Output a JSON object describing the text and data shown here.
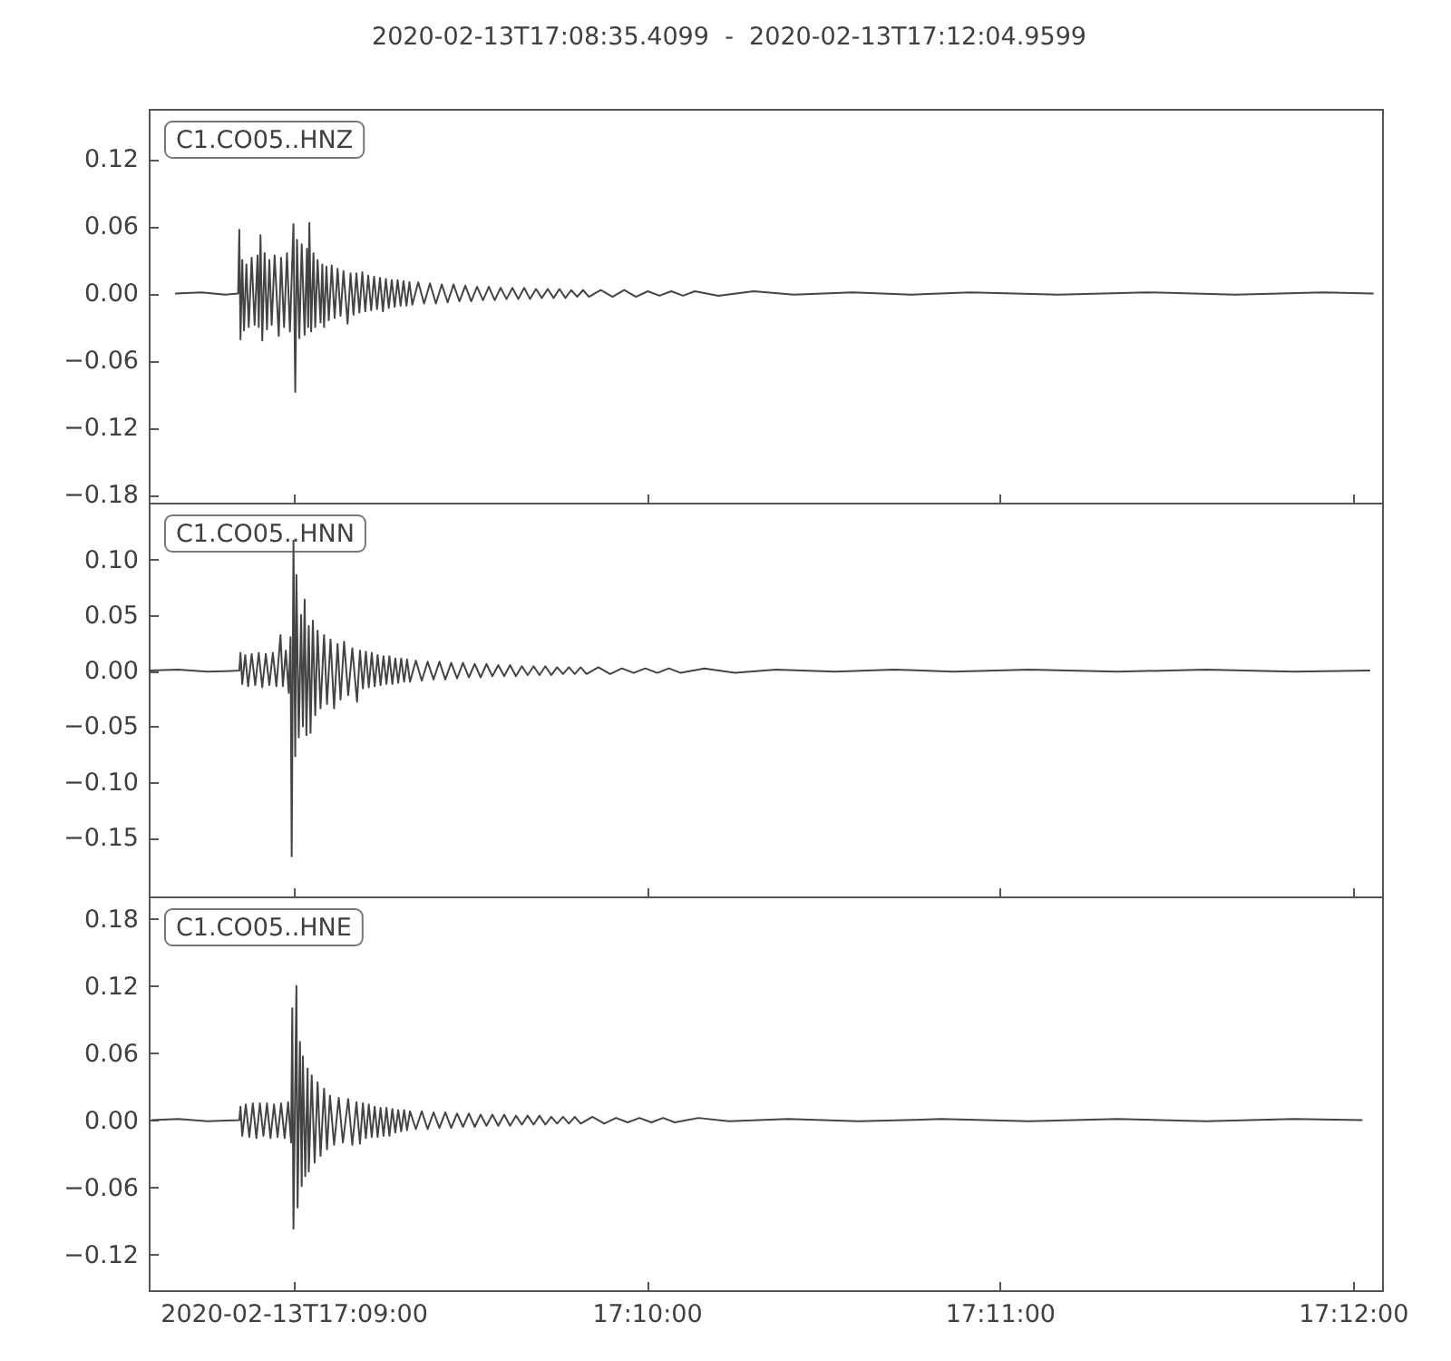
{
  "chart_data": [
    {
      "type": "line",
      "title": "2020-02-13T17:08:35.4099  -  2020-02-13T17:12:04.9599",
      "annotations": [
        "C1.CO05..HNZ"
      ],
      "tick_labels": "y",
      "xlim": [
        "2020-02-13T17:08:35.4099",
        "2020-02-13T17:12:04.9599"
      ],
      "xticks": [
        "2020-02-13T17:09:00",
        "2020-02-13T17:10:00",
        "2020-02-13T17:11:00",
        "2020-02-13T17:12:00"
      ],
      "ylim": [
        -0.187,
        0.165
      ],
      "yticks": [
        {
          "value": -0.18,
          "label": "−0.18"
        },
        {
          "value": -0.12,
          "label": "−0.12"
        },
        {
          "value": -0.06,
          "label": "−0.06"
        },
        {
          "value": 0,
          "label": "0.00"
        },
        {
          "value": 0.06,
          "label": "0.06"
        },
        {
          "value": 0.12,
          "label": "0.12"
        }
      ],
      "x": [
        "2020-02-13T17:08:40.0",
        "2020-02-13T17:08:44.4",
        "2020-02-13T17:08:48.4",
        "2020-02-13T17:08:50.6",
        "2020-02-13T17:08:50.8",
        "2020-02-13T17:08:51.0",
        "2020-02-13T17:08:51.3",
        "2020-02-13T17:08:51.6",
        "2020-02-13T17:08:52.0",
        "2020-02-13T17:08:52.4",
        "2020-02-13T17:08:52.9",
        "2020-02-13T17:08:53.4",
        "2020-02-13T17:08:53.9",
        "2020-02-13T17:08:54.1",
        "2020-02-13T17:08:54.4",
        "2020-02-13T17:08:54.7",
        "2020-02-13T17:08:55.1",
        "2020-02-13T17:08:55.5",
        "2020-02-13T17:08:55.9",
        "2020-02-13T17:08:56.3",
        "2020-02-13T17:08:56.8",
        "2020-02-13T17:08:57.5",
        "2020-02-13T17:08:57.9",
        "2020-02-13T17:08:58.4",
        "2020-02-13T17:08:58.9",
        "2020-02-13T17:08:59.4",
        "2020-02-13T17:09:00.0",
        "2020-02-13T17:09:00.3",
        "2020-02-13T17:09:00.6",
        "2020-02-13T17:09:01.0",
        "2020-02-13T17:09:01.4",
        "2020-02-13T17:09:01.9",
        "2020-02-13T17:09:02.3",
        "2020-02-13T17:09:02.5",
        "2020-02-13T17:09:02.7",
        "2020-02-13T17:09:03.0",
        "2020-02-13T17:09:03.4",
        "2020-02-13T17:09:03.7",
        "2020-02-13T17:09:04.1",
        "2020-02-13T17:09:04.6",
        "2020-02-13T17:09:04.9",
        "2020-02-13T17:09:05.2",
        "2020-02-13T17:09:05.6",
        "2020-02-13T17:09:06.0",
        "2020-02-13T17:09:06.5",
        "2020-02-13T17:09:07.0",
        "2020-02-13T17:09:07.5",
        "2020-02-13T17:09:08.0",
        "2020-02-13T17:09:08.5",
        "2020-02-13T17:09:09.2",
        "2020-02-13T17:09:09.7",
        "2020-02-13T17:09:10.2",
        "2020-02-13T17:09:10.7",
        "2020-02-13T17:09:11.2",
        "2020-02-13T17:09:11.7",
        "2020-02-13T17:09:12.2",
        "2020-02-13T17:09:12.7",
        "2020-02-13T17:09:13.2",
        "2020-02-13T17:09:13.7",
        "2020-02-13T17:09:14.2",
        "2020-02-13T17:09:14.7",
        "2020-02-13T17:09:15.2",
        "2020-02-13T17:09:15.7",
        "2020-02-13T17:09:16.2",
        "2020-02-13T17:09:16.7",
        "2020-02-13T17:09:17.2",
        "2020-02-13T17:09:17.7",
        "2020-02-13T17:09:18.2",
        "2020-02-13T17:09:18.7",
        "2020-02-13T17:09:19.2",
        "2020-02-13T17:09:19.7",
        "2020-02-13T17:09:20.2",
        "2020-02-13T17:09:21.2",
        "2020-02-13T17:09:22.2",
        "2020-02-13T17:09:23.2",
        "2020-02-13T17:09:24.2",
        "2020-02-13T17:09:25.2",
        "2020-02-13T17:09:26.2",
        "2020-02-13T17:09:27.2",
        "2020-02-13T17:09:28.2",
        "2020-02-13T17:09:29.2",
        "2020-02-13T17:09:30.2",
        "2020-02-13T17:09:31.2",
        "2020-02-13T17:09:32.2",
        "2020-02-13T17:09:33.2",
        "2020-02-13T17:09:34.2",
        "2020-02-13T17:09:35.2",
        "2020-02-13T17:09:36.2",
        "2020-02-13T17:09:37.2",
        "2020-02-13T17:09:38.2",
        "2020-02-13T17:09:39.2",
        "2020-02-13T17:09:40.2",
        "2020-02-13T17:09:41.2",
        "2020-02-13T17:09:42.2",
        "2020-02-13T17:09:43.2",
        "2020-02-13T17:09:44.2",
        "2020-02-13T17:09:45.2",
        "2020-02-13T17:09:46.2",
        "2020-02-13T17:09:47.2",
        "2020-02-13T17:09:48.2",
        "2020-02-13T17:09:49.2",
        "2020-02-13T17:09:50.2",
        "2020-02-13T17:09:52.2",
        "2020-02-13T17:09:54.2",
        "2020-02-13T17:09:56.2",
        "2020-02-13T17:09:58.2",
        "2020-02-13T17:10:00.2",
        "2020-02-13T17:10:02.2",
        "2020-02-13T17:10:04.2",
        "2020-02-13T17:10:06.2",
        "2020-02-13T17:10:08.2",
        "2020-02-13T17:10:12.2",
        "2020-02-13T17:10:18.2",
        "2020-02-13T17:10:25.0",
        "2020-02-13T17:10:35.0",
        "2020-02-13T17:10:45.0",
        "2020-02-13T17:10:55.0",
        "2020-02-13T17:11:10.0",
        "2020-02-13T17:11:25.0",
        "2020-02-13T17:11:40.0",
        "2020-02-13T17:11:55.0",
        "2020-02-13T17:12:03.4"
      ],
      "series": [
        {
          "color": "#444444",
          "values": [
            0,
            0.001,
            -0.001,
            0,
            0.057,
            -0.041,
            0.03,
            -0.033,
            0.026,
            -0.03,
            0.032,
            -0.028,
            0.034,
            -0.03,
            0.052,
            -0.042,
            0.036,
            -0.032,
            0.03,
            -0.028,
            0.034,
            -0.038,
            0.032,
            -0.03,
            0.036,
            -0.034,
            0.062,
            -0.088,
            0.048,
            -0.04,
            0.044,
            -0.037,
            0.04,
            -0.03,
            0.063,
            -0.034,
            0.036,
            -0.03,
            0.03,
            -0.026,
            0.026,
            -0.03,
            0.024,
            -0.024,
            0.025,
            -0.022,
            0.022,
            -0.02,
            0.02,
            -0.027,
            0.018,
            -0.019,
            0.018,
            -0.017,
            0.019,
            -0.016,
            0.016,
            -0.015,
            0.015,
            -0.014,
            0.014,
            -0.016,
            0.013,
            -0.013,
            0.012,
            -0.012,
            0.012,
            -0.011,
            0.011,
            -0.011,
            0.01,
            -0.01,
            0.01,
            -0.009,
            0.009,
            -0.009,
            0.008,
            -0.008,
            0.008,
            -0.007,
            0.007,
            -0.007,
            0.006,
            -0.006,
            0.006,
            -0.006,
            0.005,
            -0.005,
            0.005,
            -0.005,
            0.005,
            -0.005,
            0.004,
            -0.004,
            0.004,
            -0.004,
            0.004,
            -0.004,
            0.003,
            -0.003,
            0.003,
            -0.003,
            0.003,
            -0.003,
            0.003,
            -0.003,
            0.002,
            -0.002,
            0.002,
            -0.002,
            0.002,
            -0.002,
            0.002,
            -0.001,
            0.001,
            -0.001,
            0.001,
            -0.001,
            0.001,
            -0.001,
            0.001,
            0
          ]
        }
      ]
    },
    {
      "type": "line",
      "annotations": [
        "C1.CO05..HNN"
      ],
      "tick_labels": "y",
      "xlim": [
        "2020-02-13T17:08:35.4099",
        "2020-02-13T17:12:04.9599"
      ],
      "xticks": [
        "2020-02-13T17:09:00",
        "2020-02-13T17:10:00",
        "2020-02-13T17:11:00",
        "2020-02-13T17:12:00"
      ],
      "ylim": [
        -0.203,
        0.151
      ],
      "yticks": [
        {
          "value": -0.15,
          "label": "−0.15"
        },
        {
          "value": -0.1,
          "label": "−0.10"
        },
        {
          "value": -0.05,
          "label": "−0.05"
        },
        {
          "value": 0,
          "label": "0.00"
        },
        {
          "value": 0.05,
          "label": "0.05"
        },
        {
          "value": 0.1,
          "label": "0.10"
        }
      ],
      "x": [
        "2020-02-13T17:08:35.5",
        "2020-02-13T17:08:40.4",
        "2020-02-13T17:08:45.4",
        "2020-02-13T17:08:50.8",
        "2020-02-13T17:08:51.0",
        "2020-02-13T17:08:51.3",
        "2020-02-13T17:08:51.8",
        "2020-02-13T17:08:52.3",
        "2020-02-13T17:08:52.9",
        "2020-02-13T17:08:53.5",
        "2020-02-13T17:08:54.1",
        "2020-02-13T17:08:54.7",
        "2020-02-13T17:08:55.3",
        "2020-02-13T17:08:55.9",
        "2020-02-13T17:08:56.5",
        "2020-02-13T17:08:57.1",
        "2020-02-13T17:08:57.8",
        "2020-02-13T17:08:58.2",
        "2020-02-13T17:08:58.7",
        "2020-02-13T17:08:59.2",
        "2020-02-13T17:08:59.5",
        "2020-02-13T17:08:59.7",
        "2020-02-13T17:09:00.0",
        "2020-02-13T17:09:00.3",
        "2020-02-13T17:09:00.5",
        "2020-02-13T17:09:00.9",
        "2020-02-13T17:09:01.3",
        "2020-02-13T17:09:01.6",
        "2020-02-13T17:09:01.9",
        "2020-02-13T17:09:02.2",
        "2020-02-13T17:09:02.6",
        "2020-02-13T17:09:02.9",
        "2020-02-13T17:09:03.3",
        "2020-02-13T17:09:03.7",
        "2020-02-13T17:09:04.1",
        "2020-02-13T17:09:04.6",
        "2020-02-13T17:09:05.2",
        "2020-02-13T17:09:05.7",
        "2020-02-13T17:09:06.3",
        "2020-02-13T17:09:06.9",
        "2020-02-13T17:09:07.5",
        "2020-02-13T17:09:08.0",
        "2020-02-13T17:09:08.6",
        "2020-02-13T17:09:09.3",
        "2020-02-13T17:09:10.0",
        "2020-02-13T17:09:10.8",
        "2020-02-13T17:09:11.3",
        "2020-02-13T17:09:11.8",
        "2020-02-13T17:09:12.3",
        "2020-02-13T17:09:12.8",
        "2020-02-13T17:09:13.3",
        "2020-02-13T17:09:13.8",
        "2020-02-13T17:09:14.3",
        "2020-02-13T17:09:14.8",
        "2020-02-13T17:09:15.3",
        "2020-02-13T17:09:15.8",
        "2020-02-13T17:09:16.3",
        "2020-02-13T17:09:16.8",
        "2020-02-13T17:09:17.3",
        "2020-02-13T17:09:17.8",
        "2020-02-13T17:09:18.3",
        "2020-02-13T17:09:18.8",
        "2020-02-13T17:09:19.3",
        "2020-02-13T17:09:19.8",
        "2020-02-13T17:09:20.8",
        "2020-02-13T17:09:21.8",
        "2020-02-13T17:09:22.8",
        "2020-02-13T17:09:23.8",
        "2020-02-13T17:09:24.8",
        "2020-02-13T17:09:25.8",
        "2020-02-13T17:09:26.8",
        "2020-02-13T17:09:27.8",
        "2020-02-13T17:09:28.8",
        "2020-02-13T17:09:29.8",
        "2020-02-13T17:09:30.8",
        "2020-02-13T17:09:31.8",
        "2020-02-13T17:09:32.8",
        "2020-02-13T17:09:33.8",
        "2020-02-13T17:09:34.8",
        "2020-02-13T17:09:35.8",
        "2020-02-13T17:09:36.8",
        "2020-02-13T17:09:37.8",
        "2020-02-13T17:09:38.8",
        "2020-02-13T17:09:39.8",
        "2020-02-13T17:09:40.8",
        "2020-02-13T17:09:41.8",
        "2020-02-13T17:09:42.8",
        "2020-02-13T17:09:43.8",
        "2020-02-13T17:09:44.8",
        "2020-02-13T17:09:45.8",
        "2020-02-13T17:09:46.8",
        "2020-02-13T17:09:47.8",
        "2020-02-13T17:09:48.8",
        "2020-02-13T17:09:49.8",
        "2020-02-13T17:09:51.8",
        "2020-02-13T17:09:53.8",
        "2020-02-13T17:09:55.8",
        "2020-02-13T17:09:57.8",
        "2020-02-13T17:09:59.8",
        "2020-02-13T17:10:01.8",
        "2020-02-13T17:10:03.8",
        "2020-02-13T17:10:05.8",
        "2020-02-13T17:10:09.8",
        "2020-02-13T17:10:15.0",
        "2020-02-13T17:10:22.0",
        "2020-02-13T17:10:32.0",
        "2020-02-13T17:10:42.0",
        "2020-02-13T17:10:52.0",
        "2020-02-13T17:11:05.0",
        "2020-02-13T17:11:20.0",
        "2020-02-13T17:11:35.0",
        "2020-02-13T17:11:50.0",
        "2020-02-13T17:12:02.8"
      ],
      "series": [
        {
          "color": "#444444",
          "values": [
            0,
            0.001,
            -0.001,
            0,
            0.016,
            -0.012,
            0.014,
            -0.014,
            0.015,
            -0.013,
            0.016,
            -0.015,
            0.015,
            -0.013,
            0.016,
            -0.014,
            0.032,
            -0.014,
            0.018,
            -0.02,
            0.03,
            -0.167,
            0.117,
            -0.077,
            0.086,
            -0.06,
            0.05,
            -0.05,
            0.064,
            -0.058,
            0.04,
            -0.056,
            0.045,
            -0.04,
            0.036,
            -0.034,
            0.032,
            -0.03,
            0.028,
            -0.034,
            0.024,
            -0.026,
            0.026,
            -0.022,
            0.02,
            -0.028,
            0.018,
            -0.016,
            0.017,
            -0.015,
            0.016,
            -0.014,
            0.014,
            -0.013,
            0.013,
            -0.012,
            0.013,
            -0.012,
            0.011,
            -0.011,
            0.011,
            -0.01,
            0.01,
            -0.01,
            0.009,
            -0.009,
            0.008,
            -0.008,
            0.008,
            -0.008,
            0.007,
            -0.007,
            0.007,
            -0.006,
            0.006,
            -0.006,
            0.006,
            -0.005,
            0.005,
            -0.005,
            0.005,
            -0.005,
            0.004,
            -0.004,
            0.004,
            -0.004,
            0.004,
            -0.004,
            0.003,
            -0.003,
            0.003,
            -0.003,
            0.003,
            -0.003,
            0.003,
            -0.003,
            0.002,
            -0.002,
            0.002,
            -0.002,
            0.002,
            -0.002,
            0.002,
            -0.002,
            0.001,
            -0.001,
            0.001,
            -0.001,
            0.001,
            -0.001,
            0.001,
            -0.001,
            0
          ]
        }
      ]
    },
    {
      "type": "line",
      "annotations": [
        "C1.CO05..HNE"
      ],
      "xlim": [
        "2020-02-13T17:08:35.4099",
        "2020-02-13T17:12:04.9599"
      ],
      "xticks": [
        {
          "value": "2020-02-13T17:09:00",
          "label": "2020-02-13T17:09:00"
        },
        {
          "value": "2020-02-13T17:10:00",
          "label": "17:10:00"
        },
        {
          "value": "2020-02-13T17:11:00",
          "label": "17:11:00"
        },
        {
          "value": "2020-02-13T17:12:00",
          "label": "17:12:00"
        }
      ],
      "ylim": [
        -0.152,
        0.2
      ],
      "yticks": [
        {
          "value": -0.12,
          "label": "−0.12"
        },
        {
          "value": -0.06,
          "label": "−0.06"
        },
        {
          "value": 0,
          "label": "0.00"
        },
        {
          "value": 0.06,
          "label": "0.06"
        },
        {
          "value": 0.12,
          "label": "0.12"
        },
        {
          "value": 0.18,
          "label": "0.18"
        }
      ],
      "x": [
        "2020-02-13T17:08:36.0",
        "2020-02-13T17:08:40.4",
        "2020-02-13T17:08:45.4",
        "2020-02-13T17:08:50.8",
        "2020-02-13T17:08:51.0",
        "2020-02-13T17:08:51.3",
        "2020-02-13T17:08:51.9",
        "2020-02-13T17:08:52.5",
        "2020-02-13T17:08:53.1",
        "2020-02-13T17:08:53.7",
        "2020-02-13T17:08:54.3",
        "2020-02-13T17:08:54.9",
        "2020-02-13T17:08:55.5",
        "2020-02-13T17:08:56.1",
        "2020-02-13T17:08:56.7",
        "2020-02-13T17:08:57.3",
        "2020-02-13T17:08:57.9",
        "2020-02-13T17:08:58.5",
        "2020-02-13T17:08:59.1",
        "2020-02-13T17:08:59.6",
        "2020-02-13T17:08:59.8",
        "2020-02-13T17:09:00.0",
        "2020-02-13T17:09:00.5",
        "2020-02-13T17:09:00.7",
        "2020-02-13T17:09:01.1",
        "2020-02-13T17:09:01.4",
        "2020-02-13T17:09:01.6",
        "2020-02-13T17:09:02.0",
        "2020-02-13T17:09:02.4",
        "2020-02-13T17:09:02.6",
        "2020-02-13T17:09:03.1",
        "2020-02-13T17:09:03.6",
        "2020-02-13T17:09:04.1",
        "2020-02-13T17:09:04.6",
        "2020-02-13T17:09:05.2",
        "2020-02-13T17:09:05.7",
        "2020-02-13T17:09:06.2",
        "2020-02-13T17:09:06.9",
        "2020-02-13T17:09:07.7",
        "2020-02-13T17:09:08.4",
        "2020-02-13T17:09:09.3",
        "2020-02-13T17:09:10.0",
        "2020-02-13T17:09:10.7",
        "2020-02-13T17:09:11.3",
        "2020-02-13T17:09:11.8",
        "2020-02-13T17:09:12.3",
        "2020-02-13T17:09:12.8",
        "2020-02-13T17:09:13.3",
        "2020-02-13T17:09:13.8",
        "2020-02-13T17:09:14.3",
        "2020-02-13T17:09:14.8",
        "2020-02-13T17:09:15.3",
        "2020-02-13T17:09:15.8",
        "2020-02-13T17:09:16.3",
        "2020-02-13T17:09:16.8",
        "2020-02-13T17:09:17.3",
        "2020-02-13T17:09:17.8",
        "2020-02-13T17:09:18.3",
        "2020-02-13T17:09:18.8",
        "2020-02-13T17:09:19.3",
        "2020-02-13T17:09:19.8",
        "2020-02-13T17:09:20.8",
        "2020-02-13T17:09:21.8",
        "2020-02-13T17:09:22.8",
        "2020-02-13T17:09:23.8",
        "2020-02-13T17:09:24.8",
        "2020-02-13T17:09:25.8",
        "2020-02-13T17:09:26.8",
        "2020-02-13T17:09:27.8",
        "2020-02-13T17:09:28.8",
        "2020-02-13T17:09:29.8",
        "2020-02-13T17:09:30.8",
        "2020-02-13T17:09:31.8",
        "2020-02-13T17:09:32.8",
        "2020-02-13T17:09:33.8",
        "2020-02-13T17:09:34.8",
        "2020-02-13T17:09:35.8",
        "2020-02-13T17:09:36.8",
        "2020-02-13T17:09:37.8",
        "2020-02-13T17:09:38.8",
        "2020-02-13T17:09:39.8",
        "2020-02-13T17:09:40.8",
        "2020-02-13T17:09:41.8",
        "2020-02-13T17:09:42.8",
        "2020-02-13T17:09:43.8",
        "2020-02-13T17:09:44.8",
        "2020-02-13T17:09:45.8",
        "2020-02-13T17:09:46.8",
        "2020-02-13T17:09:47.8",
        "2020-02-13T17:09:48.8",
        "2020-02-13T17:09:50.8",
        "2020-02-13T17:09:52.8",
        "2020-02-13T17:09:54.8",
        "2020-02-13T17:09:56.8",
        "2020-02-13T17:09:58.8",
        "2020-02-13T17:10:00.8",
        "2020-02-13T17:10:02.8",
        "2020-02-13T17:10:04.8",
        "2020-02-13T17:10:08.8",
        "2020-02-13T17:10:14.0",
        "2020-02-13T17:10:24.0",
        "2020-02-13T17:10:36.0",
        "2020-02-13T17:10:50.0",
        "2020-02-13T17:11:05.0",
        "2020-02-13T17:11:20.0",
        "2020-02-13T17:11:35.0",
        "2020-02-13T17:11:50.0",
        "2020-02-13T17:12:01.5"
      ],
      "series": [
        {
          "color": "#444444",
          "values": [
            0,
            0.001,
            -0.001,
            0,
            0.012,
            -0.014,
            0.014,
            -0.015,
            0.015,
            -0.016,
            0.015,
            -0.014,
            0.015,
            -0.016,
            0.014,
            -0.015,
            0.015,
            -0.016,
            0.016,
            -0.02,
            0.1,
            -0.097,
            0.12,
            -0.078,
            0.07,
            -0.059,
            0.057,
            -0.05,
            0.046,
            -0.046,
            0.04,
            -0.038,
            0.034,
            -0.032,
            0.028,
            -0.026,
            0.022,
            -0.022,
            0.02,
            -0.02,
            0.019,
            -0.022,
            0.016,
            -0.021,
            0.015,
            -0.016,
            0.014,
            -0.015,
            0.012,
            -0.015,
            0.011,
            -0.014,
            0.011,
            -0.014,
            0.01,
            -0.011,
            0.009,
            -0.01,
            0.009,
            -0.009,
            0.008,
            -0.008,
            0.008,
            -0.008,
            0.007,
            -0.007,
            0.007,
            -0.007,
            0.006,
            -0.006,
            0.006,
            -0.006,
            0.005,
            -0.005,
            0.005,
            -0.005,
            0.005,
            -0.005,
            0.004,
            -0.004,
            0.004,
            -0.004,
            0.004,
            -0.004,
            0.003,
            -0.003,
            0.003,
            -0.003,
            0.003,
            -0.003,
            0.003,
            -0.003,
            0.002,
            -0.002,
            0.002,
            -0.002,
            0.002,
            -0.002,
            0.002,
            -0.001,
            0.001,
            -0.001,
            0.001,
            -0.001,
            0.001,
            -0.001,
            0.001,
            0
          ]
        }
      ]
    }
  ]
}
